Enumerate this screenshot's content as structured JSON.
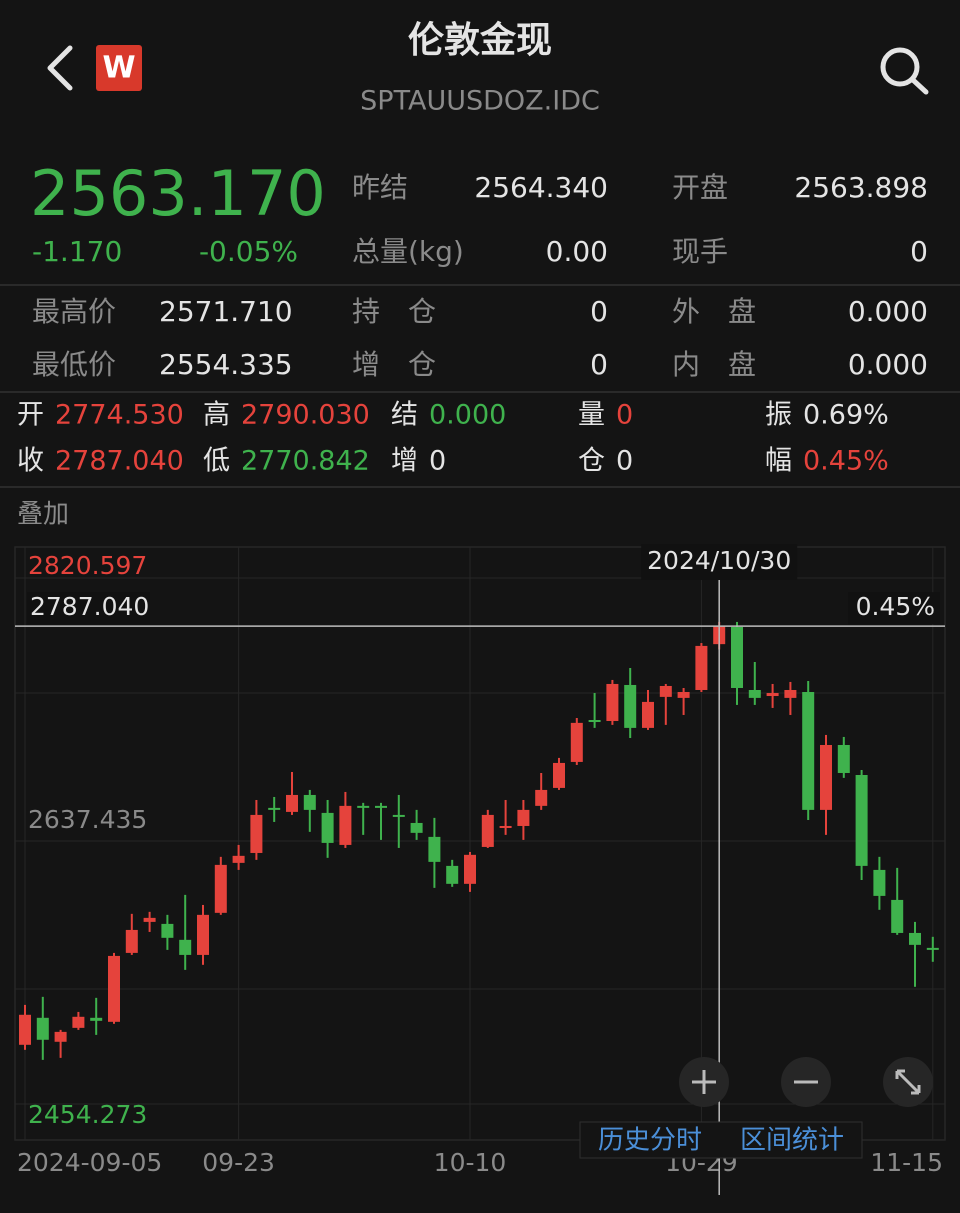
{
  "header": {
    "title": "伦敦金现",
    "code": "SPTAUUSDOZ.IDC",
    "logo": "W"
  },
  "quote": {
    "price": "2563.170",
    "change": "-1.170",
    "change_pct": "-0.05%"
  },
  "stats": [
    {
      "label": "昨结",
      "value": "2564.340"
    },
    {
      "label": "开盘",
      "value": "2563.898"
    },
    {
      "label": "总量(kg)",
      "value": "0.00"
    },
    {
      "label": "现手",
      "value": "0"
    }
  ],
  "ranges": [
    {
      "label": "最高价",
      "value": "2571.710"
    },
    {
      "label": "持　仓",
      "value": "0"
    },
    {
      "label": "外　盘",
      "value": "0.000"
    },
    {
      "label": "最低价",
      "value": "2554.335"
    },
    {
      "label": "增　仓",
      "value": "0"
    },
    {
      "label": "内　盘",
      "value": "0.000"
    }
  ],
  "details": [
    [
      {
        "label": "开",
        "value": "2774.530"
      },
      {
        "label": "高",
        "value": "2790.030"
      },
      {
        "label": "结",
        "value": "0.000"
      },
      {
        "label": "量",
        "value": "0"
      },
      {
        "label": "振",
        "value": "0.69%"
      }
    ],
    [
      {
        "label": "收",
        "value": "2787.040"
      },
      {
        "label": "低",
        "value": "2770.842"
      },
      {
        "label": "增",
        "value": "0"
      },
      {
        "label": "仓",
        "value": "0"
      },
      {
        "label": "幅",
        "value": "0.45%"
      }
    ]
  ],
  "overlay": "叠加",
  "chart_data": {
    "type": "candlestick",
    "categories": [
      "2024-09-05",
      null,
      null,
      null,
      null,
      null,
      null,
      null,
      null,
      null,
      null,
      null,
      "09-23",
      null,
      null,
      null,
      null,
      null,
      null,
      null,
      null,
      null,
      null,
      null,
      null,
      "10-10",
      null,
      null,
      null,
      null,
      null,
      null,
      null,
      null,
      null,
      null,
      null,
      null,
      "10-29",
      null,
      null,
      null,
      null,
      null,
      null,
      null,
      null,
      null,
      null,
      null,
      null,
      "11-15"
    ],
    "open": [
      2495.5,
      2514.3,
      2497.6,
      2507.3,
      2514.3,
      2511.5,
      2559.5,
      2581.1,
      2579.7,
      2568.6,
      2558.1,
      2587.4,
      2622.2,
      2629.1,
      2660.5,
      2657.7,
      2669.5,
      2657.0,
      2634.7,
      2661.9,
      2661.9,
      2655.6,
      2650.0,
      2640.3,
      2620.1,
      2607.6,
      2633.3,
      2646.5,
      2647.9,
      2661.9,
      2674.4,
      2692.5,
      2721.7,
      2721.0,
      2746.1,
      2716.2,
      2737.8,
      2737.1,
      2742.6,
      2774.53,
      2786.5,
      2742.6,
      2738.4,
      2737.1,
      2741.2,
      2659.1,
      2704.3,
      2683.4,
      2617.3,
      2596.4,
      2573.4,
      2563.0
    ],
    "high": [
      2523.3,
      2528.9,
      2505.9,
      2518.4,
      2528.2,
      2559.5,
      2586.7,
      2588.1,
      2586.0,
      2599.9,
      2592.9,
      2626.4,
      2634.7,
      2666.0,
      2668.1,
      2685.5,
      2673.0,
      2666.0,
      2671.6,
      2664.0,
      2664.0,
      2669.5,
      2659.1,
      2653.5,
      2624.3,
      2629.8,
      2659.1,
      2666.0,
      2666.0,
      2684.8,
      2695.3,
      2723.1,
      2740.5,
      2749.6,
      2757.9,
      2742.6,
      2746.8,
      2744.0,
      2775.3,
      2790.03,
      2790.0,
      2762.1,
      2746.8,
      2748.2,
      2748.9,
      2711.3,
      2709.9,
      2686.9,
      2626.4,
      2618.7,
      2581.1,
      2570.7
    ],
    "low": [
      2492.0,
      2485.0,
      2486.4,
      2505.9,
      2502.4,
      2510.1,
      2558.1,
      2574.1,
      2561.6,
      2547.7,
      2551.2,
      2586.0,
      2617.3,
      2624.3,
      2650.7,
      2655.6,
      2643.8,
      2625.7,
      2632.6,
      2641.7,
      2638.2,
      2632.6,
      2638.2,
      2604.8,
      2605.5,
      2602.0,
      2632.6,
      2641.7,
      2638.2,
      2659.1,
      2673.0,
      2690.4,
      2716.2,
      2718.3,
      2709.2,
      2714.8,
      2718.3,
      2725.2,
      2741.2,
      2770.842,
      2732.2,
      2732.2,
      2730.1,
      2725.2,
      2652.1,
      2641.7,
      2681.4,
      2610.3,
      2589.5,
      2572.1,
      2535.9,
      2553.3
    ],
    "close": [
      2516.4,
      2499.0,
      2504.5,
      2515.0,
      2512.2,
      2557.4,
      2575.5,
      2583.9,
      2570.0,
      2558.1,
      2586.0,
      2620.8,
      2627.1,
      2655.6,
      2659.1,
      2669.5,
      2659.1,
      2636.1,
      2661.9,
      2660.5,
      2660.5,
      2654.2,
      2643.1,
      2622.9,
      2607.6,
      2627.8,
      2655.6,
      2647.9,
      2659.1,
      2673.0,
      2691.8,
      2719.7,
      2720.3,
      2746.8,
      2716.2,
      2734.3,
      2745.4,
      2741.2,
      2773.3,
      2787.04,
      2744.0,
      2737.1,
      2740.5,
      2742.6,
      2659.1,
      2704.3,
      2684.8,
      2620.1,
      2599.2,
      2573.4,
      2565.1,
      2561.6
    ],
    "up_color": "#e5433c",
    "down_color": "#3fb24d",
    "ylim": [
      2454.273,
      2820.597
    ],
    "yticks": [
      2454.273,
      2637.435,
      2820.597
    ],
    "grid": true,
    "crosshair": {
      "date": "2024/10/30",
      "price": {
        "value": 2787.04,
        "label": "2787.040"
      },
      "change": "0.45%"
    }
  },
  "buttons": [
    "历史分时",
    "区间统计"
  ]
}
